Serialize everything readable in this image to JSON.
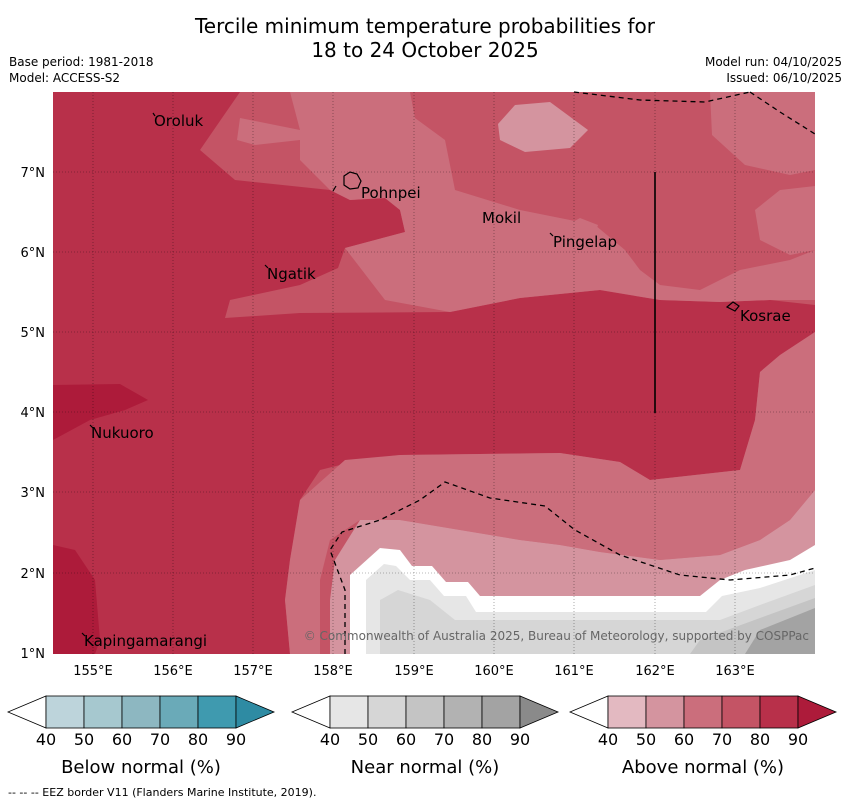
{
  "header": {
    "title_line1": "Tercile minimum temperature probabilities for",
    "title_line2": "18 to 24 October 2025",
    "base_period": "Base period: 1981-2018",
    "model": "Model: ACCESS-S2",
    "model_run": "Model run: 04/10/2025",
    "issued": "Issued: 06/10/2025"
  },
  "map": {
    "x_ticks": [
      "155°E",
      "156°E",
      "157°E",
      "158°E",
      "159°E",
      "160°E",
      "161°E",
      "162°E",
      "163°E"
    ],
    "y_ticks": [
      "1°N",
      "2°N",
      "3°N",
      "4°N",
      "5°N",
      "6°N",
      "7°N"
    ],
    "places": [
      "Oroluk",
      "Pohnpei",
      "Mokil",
      "Pingelap",
      "Ngatik",
      "Kosrae",
      "Nukuoro",
      "Kapingamarangi"
    ],
    "copyright": "© Commonwealth of Australia 2025, Bureau of Meteorology, supported by COSPPac"
  },
  "legend": {
    "ticks": [
      "40",
      "50",
      "60",
      "70",
      "80",
      "90"
    ],
    "below": {
      "title": "Below normal (%)",
      "colors": [
        "#ffffff",
        "#bdd4db",
        "#a6c8cf",
        "#8db7c1",
        "#6aaab8",
        "#3f9aaf",
        "#2e8ba3"
      ]
    },
    "near": {
      "title": "Near normal (%)",
      "colors": [
        "#ffffff",
        "#e6e6e6",
        "#d6d6d6",
        "#c4c4c4",
        "#b2b2b2",
        "#a3a3a3",
        "#8a8a8a"
      ]
    },
    "above": {
      "title": "Above normal (%)",
      "colors": [
        "#ffffff",
        "#e3b9c1",
        "#d4949f",
        "#cb6e7c",
        "#c45465",
        "#b8304a",
        "#ad1b3a"
      ]
    }
  },
  "footer": "--  --  -- EEZ border V11 (Flanders Marine Institute, 2019)."
}
